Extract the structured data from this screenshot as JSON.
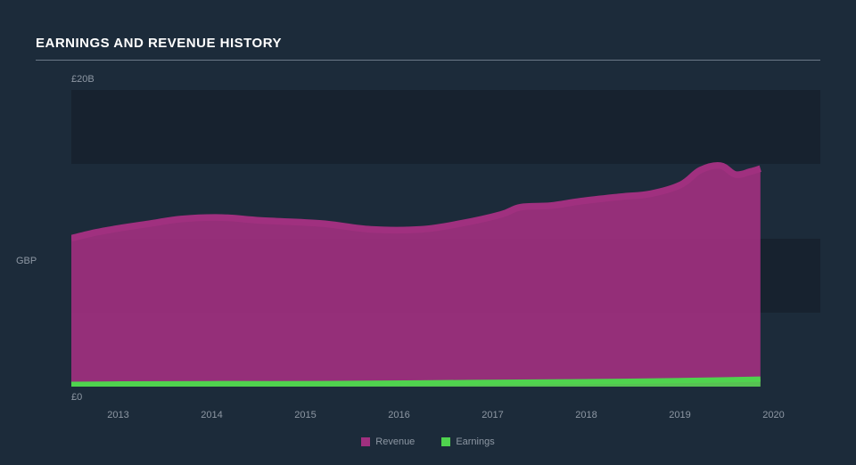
{
  "title": "EARNINGS AND REVENUE HISTORY",
  "currency_label": "GBP",
  "chart": {
    "type": "area",
    "background_color": "#1c2b3a",
    "band_color": "#17222f",
    "title_color": "#ffffff",
    "axis_text_color": "#8d97a3",
    "y_axis": {
      "min": 0,
      "max": 20,
      "ticks": [
        {
          "value": 0,
          "label": "£0"
        },
        {
          "value": 20,
          "label": "£20B"
        }
      ],
      "bands": [
        {
          "from": 5,
          "to": 10
        },
        {
          "from": 15,
          "to": 20
        }
      ]
    },
    "x_axis": {
      "min": 2012.5,
      "max": 2020,
      "labels": [
        "2013",
        "2014",
        "2015",
        "2016",
        "2017",
        "2018",
        "2019",
        "2020"
      ]
    },
    "series": [
      {
        "name": "Revenue",
        "color": "#a0307f",
        "fill_opacity": 0.92,
        "line_width": 2.5,
        "data": [
          {
            "x": 2012.5,
            "y": 10.0
          },
          {
            "x": 2012.75,
            "y": 10.4
          },
          {
            "x": 2013.0,
            "y": 10.7
          },
          {
            "x": 2013.3,
            "y": 11.0
          },
          {
            "x": 2013.6,
            "y": 11.3
          },
          {
            "x": 2014.0,
            "y": 11.4
          },
          {
            "x": 2014.4,
            "y": 11.2
          },
          {
            "x": 2015.0,
            "y": 11.0
          },
          {
            "x": 2015.5,
            "y": 10.6
          },
          {
            "x": 2016.0,
            "y": 10.6
          },
          {
            "x": 2016.4,
            "y": 11.0
          },
          {
            "x": 2016.8,
            "y": 11.6
          },
          {
            "x": 2017.0,
            "y": 12.1
          },
          {
            "x": 2017.3,
            "y": 12.2
          },
          {
            "x": 2017.6,
            "y": 12.5
          },
          {
            "x": 2018.0,
            "y": 12.8
          },
          {
            "x": 2018.3,
            "y": 13.0
          },
          {
            "x": 2018.6,
            "y": 13.6
          },
          {
            "x": 2018.8,
            "y": 14.6
          },
          {
            "x": 2019.0,
            "y": 14.9
          },
          {
            "x": 2019.15,
            "y": 14.3
          },
          {
            "x": 2019.3,
            "y": 14.5
          },
          {
            "x": 2019.4,
            "y": 14.7
          }
        ]
      },
      {
        "name": "Earnings",
        "color": "#4fd34e",
        "fill_opacity": 0.9,
        "line_width": 2,
        "data": [
          {
            "x": 2012.5,
            "y": 0.15
          },
          {
            "x": 2013.0,
            "y": 0.18
          },
          {
            "x": 2014.0,
            "y": 0.2
          },
          {
            "x": 2015.0,
            "y": 0.2
          },
          {
            "x": 2016.0,
            "y": 0.25
          },
          {
            "x": 2017.0,
            "y": 0.3
          },
          {
            "x": 2018.0,
            "y": 0.35
          },
          {
            "x": 2019.0,
            "y": 0.45
          },
          {
            "x": 2019.4,
            "y": 0.5
          }
        ]
      }
    ],
    "legend": {
      "items": [
        {
          "label": "Revenue",
          "color": "#a0307f"
        },
        {
          "label": "Earnings",
          "color": "#4fd34e"
        }
      ]
    }
  }
}
